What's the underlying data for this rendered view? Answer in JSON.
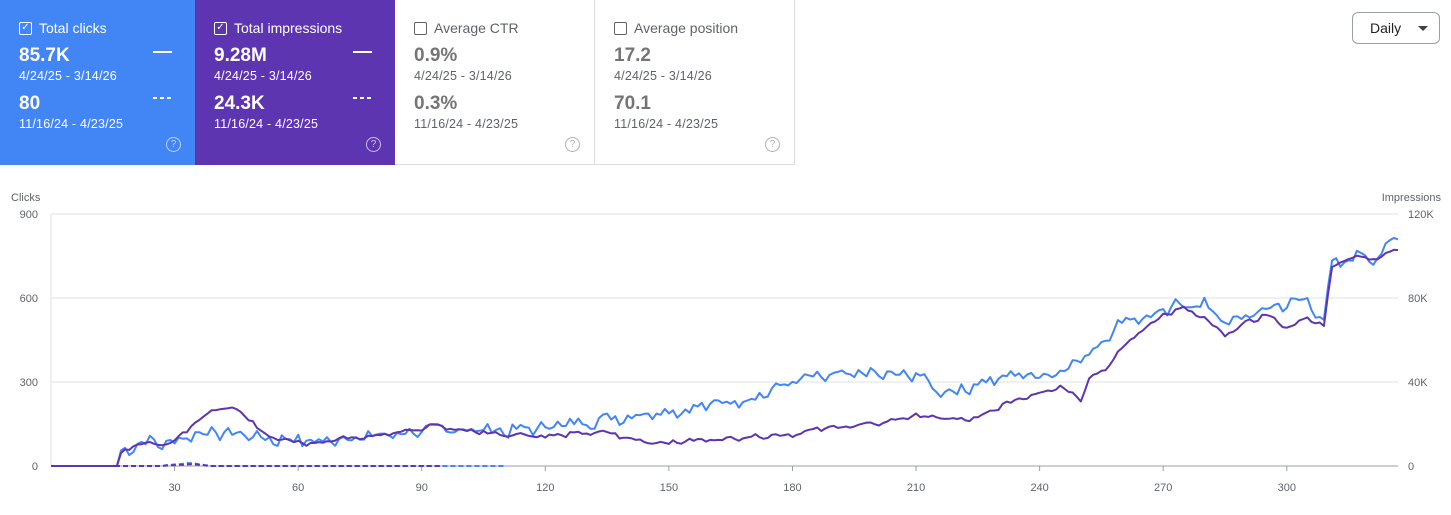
{
  "cards": {
    "clicks": {
      "label": "Total clicks",
      "value_current": "85.7K",
      "range_current": "4/24/25 - 3/14/26",
      "value_prev": "80",
      "range_prev": "11/16/24 - 4/23/25",
      "checked": true,
      "color": "#4285f4"
    },
    "impressions": {
      "label": "Total impressions",
      "value_current": "9.28M",
      "range_current": "4/24/25 - 3/14/26",
      "value_prev": "24.3K",
      "range_prev": "11/16/24 - 4/23/25",
      "checked": true,
      "color": "#5e35b1"
    },
    "ctr": {
      "label": "Average CTR",
      "value_current": "0.9%",
      "range_current": "4/24/25 - 3/14/26",
      "value_prev": "0.3%",
      "range_prev": "11/16/24 - 4/23/25",
      "checked": false
    },
    "position": {
      "label": "Average position",
      "value_current": "17.2",
      "range_current": "4/24/25 - 3/14/26",
      "value_prev": "70.1",
      "range_prev": "11/16/24 - 4/23/25",
      "checked": false
    }
  },
  "granularity": {
    "selected": "Daily"
  },
  "help_glyph": "?",
  "check_glyph": "✓",
  "chart_data": {
    "type": "line",
    "grid": true,
    "legend": "none",
    "x_ticks": [
      30,
      60,
      90,
      120,
      150,
      180,
      210,
      240,
      270,
      300
    ],
    "xlim": [
      0,
      327
    ],
    "y_left": {
      "label": "Clicks",
      "ticks": [
        0,
        300,
        600,
        900
      ],
      "tick_labels": [
        "0",
        "300",
        "600",
        "900"
      ],
      "ylim": [
        0,
        900
      ]
    },
    "y_right": {
      "label": "Impressions",
      "ticks": [
        0,
        40000,
        80000,
        120000
      ],
      "tick_labels": [
        "0",
        "40K",
        "80K",
        "120K"
      ],
      "ylim": [
        0,
        120000
      ]
    },
    "series": [
      {
        "id": "clicks_current",
        "axis": "left",
        "color": "#4285f4",
        "style": "solid",
        "anchors": [
          [
            0,
            0
          ],
          [
            10,
            0
          ],
          [
            16,
            0
          ],
          [
            17,
            50
          ],
          [
            20,
            70
          ],
          [
            24,
            90
          ],
          [
            28,
            75
          ],
          [
            31,
            95
          ],
          [
            34,
            110
          ],
          [
            38,
            120
          ],
          [
            42,
            115
          ],
          [
            47,
            115
          ],
          [
            52,
            95
          ],
          [
            57,
            95
          ],
          [
            62,
            90
          ],
          [
            66,
            85
          ],
          [
            70,
            100
          ],
          [
            75,
            100
          ],
          [
            80,
            110
          ],
          [
            85,
            115
          ],
          [
            90,
            125
          ],
          [
            95,
            130
          ],
          [
            100,
            130
          ],
          [
            105,
            130
          ],
          [
            110,
            125
          ],
          [
            115,
            130
          ],
          [
            120,
            140
          ],
          [
            125,
            150
          ],
          [
            130,
            155
          ],
          [
            135,
            170
          ],
          [
            140,
            175
          ],
          [
            145,
            190
          ],
          [
            150,
            195
          ],
          [
            155,
            200
          ],
          [
            160,
            220
          ],
          [
            165,
            230
          ],
          [
            170,
            240
          ],
          [
            175,
            270
          ],
          [
            180,
            300
          ],
          [
            185,
            315
          ],
          [
            190,
            320
          ],
          [
            195,
            325
          ],
          [
            200,
            330
          ],
          [
            205,
            320
          ],
          [
            210,
            330
          ],
          [
            215,
            270
          ],
          [
            220,
            265
          ],
          [
            225,
            295
          ],
          [
            230,
            310
          ],
          [
            235,
            330
          ],
          [
            240,
            320
          ],
          [
            245,
            340
          ],
          [
            250,
            380
          ],
          [
            255,
            440
          ],
          [
            260,
            520
          ],
          [
            265,
            530
          ],
          [
            270,
            540
          ],
          [
            273,
            580
          ],
          [
            276,
            570
          ],
          [
            280,
            580
          ],
          [
            285,
            510
          ],
          [
            290,
            530
          ],
          [
            295,
            560
          ],
          [
            300,
            580
          ],
          [
            305,
            590
          ],
          [
            309,
            520
          ],
          [
            311,
            720
          ],
          [
            315,
            730
          ],
          [
            318,
            760
          ],
          [
            322,
            740
          ],
          [
            325,
            790
          ],
          [
            327,
            820
          ]
        ],
        "amp": 20
      },
      {
        "id": "impressions_current",
        "axis": "right",
        "color": "#5e35b1",
        "style": "solid",
        "anchors": [
          [
            0,
            0
          ],
          [
            10,
            0
          ],
          [
            16,
            0
          ],
          [
            17,
            6500
          ],
          [
            20,
            10000
          ],
          [
            24,
            11000
          ],
          [
            28,
            10000
          ],
          [
            31,
            14000
          ],
          [
            35,
            21000
          ],
          [
            39,
            26000
          ],
          [
            43,
            28000
          ],
          [
            47,
            24000
          ],
          [
            52,
            15000
          ],
          [
            57,
            12000
          ],
          [
            62,
            11000
          ],
          [
            66,
            11500
          ],
          [
            70,
            13000
          ],
          [
            75,
            14000
          ],
          [
            80,
            15000
          ],
          [
            85,
            16000
          ],
          [
            90,
            17500
          ],
          [
            93,
            20000
          ],
          [
            96,
            18000
          ],
          [
            100,
            17000
          ],
          [
            105,
            16000
          ],
          [
            110,
            15000
          ],
          [
            115,
            15000
          ],
          [
            120,
            14000
          ],
          [
            125,
            15000
          ],
          [
            130,
            15500
          ],
          [
            135,
            16000
          ],
          [
            140,
            13000
          ],
          [
            145,
            11500
          ],
          [
            150,
            11000
          ],
          [
            155,
            12000
          ],
          [
            160,
            12500
          ],
          [
            165,
            13000
          ],
          [
            170,
            14000
          ],
          [
            175,
            14500
          ],
          [
            180,
            15000
          ],
          [
            185,
            17000
          ],
          [
            190,
            18500
          ],
          [
            195,
            19000
          ],
          [
            200,
            20000
          ],
          [
            205,
            22000
          ],
          [
            210,
            24000
          ],
          [
            215,
            23000
          ],
          [
            220,
            22000
          ],
          [
            225,
            22500
          ],
          [
            230,
            28000
          ],
          [
            235,
            32000
          ],
          [
            240,
            35000
          ],
          [
            245,
            38000
          ],
          [
            250,
            32000
          ],
          [
            252,
            42000
          ],
          [
            256,
            46000
          ],
          [
            260,
            56000
          ],
          [
            265,
            65000
          ],
          [
            270,
            72000
          ],
          [
            275,
            75000
          ],
          [
            280,
            70000
          ],
          [
            285,
            62000
          ],
          [
            290,
            68000
          ],
          [
            295,
            72000
          ],
          [
            300,
            66000
          ],
          [
            305,
            70000
          ],
          [
            309,
            67000
          ],
          [
            311,
            95000
          ],
          [
            315,
            99000
          ],
          [
            318,
            100000
          ],
          [
            322,
            98000
          ],
          [
            325,
            102000
          ],
          [
            327,
            104000
          ]
        ],
        "amp": 1000
      },
      {
        "id": "clicks_previous",
        "axis": "left",
        "color": "#4285f4",
        "style": "dashed",
        "anchors": [
          [
            0,
            0
          ],
          [
            25,
            0
          ],
          [
            30,
            5
          ],
          [
            34,
            12
          ],
          [
            36,
            5
          ],
          [
            38,
            0
          ],
          [
            110,
            0
          ]
        ],
        "amp": 2
      },
      {
        "id": "impressions_previous",
        "axis": "right",
        "color": "#5e35b1",
        "style": "dashed",
        "anchors": [
          [
            0,
            0
          ],
          [
            26,
            0
          ],
          [
            30,
            400
          ],
          [
            34,
            900
          ],
          [
            37,
            400
          ],
          [
            39,
            0
          ],
          [
            95,
            0
          ]
        ],
        "amp": 40
      }
    ]
  }
}
